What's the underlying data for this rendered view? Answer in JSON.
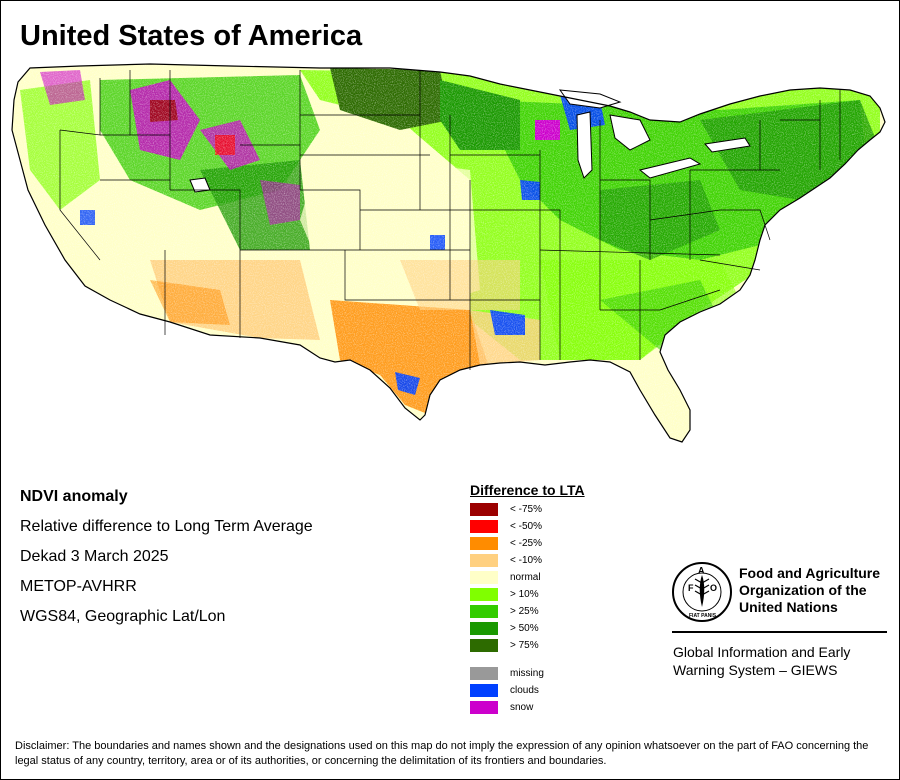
{
  "title": "United States of America",
  "info": {
    "heading": "NDVI anomaly",
    "line1": "Relative difference to Long Term Average",
    "line2": "Dekad 3 March 2025",
    "line3": "METOP-AVHRR",
    "line4": "WGS84, Geographic Lat/Lon"
  },
  "legend": {
    "title": "Difference to LTA",
    "items": [
      {
        "label": "< -75%",
        "color": "#9b0000"
      },
      {
        "label": "< -50%",
        "color": "#ff0000"
      },
      {
        "label": "< -25%",
        "color": "#ff8c00"
      },
      {
        "label": "< -10%",
        "color": "#ffd080"
      },
      {
        "label": "normal",
        "color": "#ffffc8"
      },
      {
        "label": "> 10%",
        "color": "#80ff00"
      },
      {
        "label": "> 25%",
        "color": "#33cc00"
      },
      {
        "label": "> 50%",
        "color": "#1a9900"
      },
      {
        "label": "> 75%",
        "color": "#2d6b00"
      },
      {
        "label": "missing",
        "color": "#999999"
      },
      {
        "label": "clouds",
        "color": "#0040ff"
      },
      {
        "label": "snow",
        "color": "#cc00cc"
      }
    ]
  },
  "fao": {
    "name_line1": "Food and Agriculture",
    "name_line2": "Organization of the",
    "name_line3": "United Nations",
    "logo_letters": "FAO",
    "logo_motto": "FIAT PANIS",
    "giews_line1": "Global Information and Early",
    "giews_line2": "Warning System – GIEWS"
  },
  "disclaimer": "Disclaimer: The boundaries and names shown and the designations used on this map do not imply the expression of any opinion whatsoever on the part of FAO concerning the legal status of any country, territory, area or of its authorities, or concerning the delimitation of its frontiers and boundaries."
}
